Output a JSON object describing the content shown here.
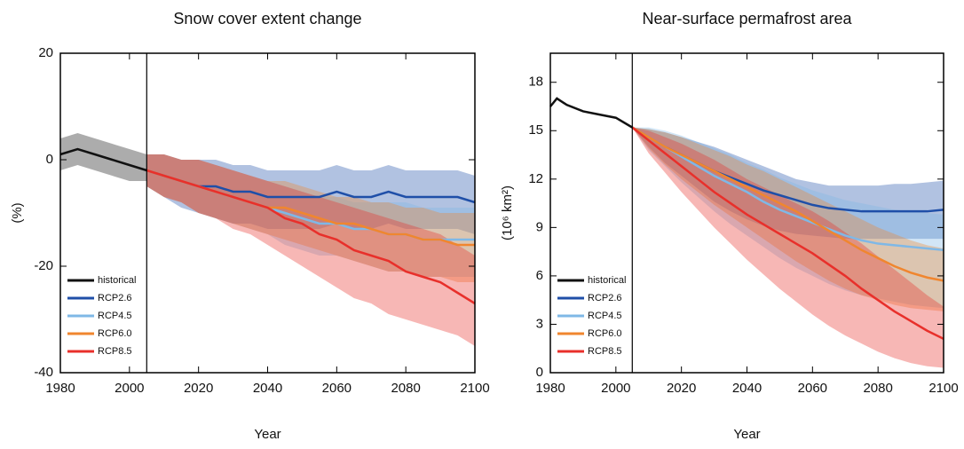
{
  "chart_data": [
    {
      "type": "line",
      "title": "Snow cover extent change",
      "xlabel": "Year",
      "ylabel": "(%)",
      "xlim": [
        1980,
        2100
      ],
      "xticks": [
        1980,
        2000,
        2020,
        2040,
        2060,
        2080,
        2100
      ],
      "ylim": [
        -40,
        20
      ],
      "yticks": [
        -40,
        -20,
        0,
        20
      ],
      "vline": 2005,
      "legend": "lower left",
      "series": [
        {
          "name": "historical",
          "color": "#111111",
          "x": [
            1980,
            1985,
            1990,
            1995,
            2000,
            2005
          ],
          "values": [
            1,
            2,
            1,
            0,
            -1,
            -2
          ],
          "lower": [
            -2,
            -1,
            -2,
            -3,
            -4,
            -4
          ],
          "upper": [
            4,
            5,
            4,
            3,
            2,
            1
          ]
        },
        {
          "name": "RCP2.6",
          "color": "#1f4fa8",
          "x": [
            2005,
            2010,
            2015,
            2020,
            2025,
            2030,
            2035,
            2040,
            2045,
            2050,
            2055,
            2060,
            2065,
            2070,
            2075,
            2080,
            2085,
            2090,
            2095,
            2100
          ],
          "values": [
            -2,
            -3,
            -4,
            -5,
            -5,
            -6,
            -6,
            -7,
            -7,
            -7,
            -7,
            -6,
            -7,
            -7,
            -6,
            -7,
            -7,
            -7,
            -7,
            -8
          ],
          "lower": [
            -5,
            -7,
            -9,
            -10,
            -11,
            -12,
            -12,
            -13,
            -13,
            -13,
            -13,
            -12,
            -13,
            -13,
            -12,
            -13,
            -13,
            -13,
            -13,
            -14
          ],
          "upper": [
            1,
            1,
            0,
            0,
            0,
            -1,
            -1,
            -2,
            -2,
            -2,
            -2,
            -1,
            -2,
            -2,
            -1,
            -2,
            -2,
            -2,
            -2,
            -3
          ]
        },
        {
          "name": "RCP4.5",
          "color": "#7fb8e6",
          "x": [
            2005,
            2010,
            2015,
            2020,
            2025,
            2030,
            2035,
            2040,
            2045,
            2050,
            2055,
            2060,
            2065,
            2070,
            2075,
            2080,
            2085,
            2090,
            2095,
            2100
          ],
          "values": [
            -2,
            -3,
            -4,
            -5,
            -6,
            -7,
            -8,
            -9,
            -10,
            -11,
            -12,
            -12,
            -13,
            -13,
            -14,
            -14,
            -15,
            -15,
            -15,
            -15
          ],
          "lower": [
            -5,
            -7,
            -8,
            -10,
            -11,
            -12,
            -13,
            -14,
            -16,
            -17,
            -18,
            -18,
            -19,
            -20,
            -21,
            -21,
            -22,
            -22,
            -22,
            -22
          ],
          "upper": [
            1,
            1,
            0,
            0,
            -1,
            -2,
            -3,
            -4,
            -5,
            -6,
            -7,
            -7,
            -8,
            -8,
            -8,
            -8,
            -9,
            -9,
            -9,
            -9
          ]
        },
        {
          "name": "RCP6.0",
          "color": "#f0862f",
          "x": [
            2005,
            2010,
            2015,
            2020,
            2025,
            2030,
            2035,
            2040,
            2045,
            2050,
            2055,
            2060,
            2065,
            2070,
            2075,
            2080,
            2085,
            2090,
            2095,
            2100
          ],
          "values": [
            -2,
            -3,
            -4,
            -5,
            -6,
            -7,
            -8,
            -9,
            -9,
            -10,
            -11,
            -12,
            -12,
            -13,
            -14,
            -14,
            -15,
            -15,
            -16,
            -16
          ],
          "lower": [
            -5,
            -7,
            -8,
            -10,
            -11,
            -12,
            -13,
            -14,
            -15,
            -16,
            -17,
            -18,
            -19,
            -20,
            -21,
            -21,
            -22,
            -22,
            -23,
            -23
          ],
          "upper": [
            1,
            1,
            0,
            0,
            -1,
            -2,
            -3,
            -4,
            -4,
            -5,
            -6,
            -7,
            -7,
            -8,
            -8,
            -9,
            -9,
            -10,
            -10,
            -10
          ]
        },
        {
          "name": "RCP8.5",
          "color": "#e8302b",
          "x": [
            2005,
            2010,
            2015,
            2020,
            2025,
            2030,
            2035,
            2040,
            2045,
            2050,
            2055,
            2060,
            2065,
            2070,
            2075,
            2080,
            2085,
            2090,
            2095,
            2100
          ],
          "values": [
            -2,
            -3,
            -4,
            -5,
            -6,
            -7,
            -8,
            -9,
            -11,
            -12,
            -14,
            -15,
            -17,
            -18,
            -19,
            -21,
            -22,
            -23,
            -25,
            -27
          ],
          "lower": [
            -5,
            -7,
            -8,
            -10,
            -11,
            -13,
            -14,
            -16,
            -18,
            -20,
            -22,
            -24,
            -26,
            -27,
            -29,
            -30,
            -31,
            -32,
            -33,
            -35
          ],
          "upper": [
            1,
            1,
            0,
            0,
            -1,
            -2,
            -3,
            -4,
            -5,
            -6,
            -7,
            -8,
            -9,
            -10,
            -11,
            -12,
            -13,
            -14,
            -16,
            -18
          ]
        }
      ]
    },
    {
      "type": "line",
      "title": "Near-surface permafrost area",
      "xlabel": "Year",
      "ylabel": "(10⁶ km²)",
      "xlim": [
        1980,
        2100
      ],
      "xticks": [
        1980,
        2000,
        2020,
        2040,
        2060,
        2080,
        2100
      ],
      "ylim": [
        0,
        19.8
      ],
      "yticks": [
        0,
        3,
        6,
        9,
        12,
        15,
        18
      ],
      "vline": 2005,
      "legend": "lower left",
      "series": [
        {
          "name": "historical",
          "color": "#111111",
          "x": [
            1980,
            1982,
            1985,
            1990,
            1995,
            2000,
            2005
          ],
          "values": [
            16.5,
            17,
            16.6,
            16.2,
            16,
            15.8,
            15.2
          ]
        },
        {
          "name": "RCP2.6",
          "color": "#1f4fa8",
          "x": [
            2005,
            2010,
            2015,
            2020,
            2025,
            2030,
            2035,
            2040,
            2045,
            2050,
            2055,
            2060,
            2065,
            2070,
            2075,
            2080,
            2085,
            2090,
            2095,
            2100
          ],
          "values": [
            15.2,
            14.6,
            14,
            13.5,
            13,
            12.5,
            12.1,
            11.7,
            11.3,
            11,
            10.7,
            10.4,
            10.2,
            10.1,
            10,
            10,
            10,
            10,
            10,
            10.1
          ],
          "lower": [
            15.2,
            14,
            13,
            12.2,
            11.4,
            10.6,
            10,
            9.5,
            9.1,
            8.8,
            8.6,
            8.5,
            8.4,
            8.3,
            8.3,
            8.3,
            8.3,
            8.3,
            8.3,
            8.3
          ],
          "upper": [
            15.2,
            15.1,
            14.9,
            14.6,
            14.3,
            14,
            13.6,
            13.2,
            12.8,
            12.4,
            12,
            11.8,
            11.6,
            11.6,
            11.6,
            11.6,
            11.7,
            11.7,
            11.8,
            11.9
          ]
        },
        {
          "name": "RCP4.5",
          "color": "#7fb8e6",
          "x": [
            2005,
            2010,
            2015,
            2020,
            2025,
            2030,
            2035,
            2040,
            2045,
            2050,
            2055,
            2060,
            2065,
            2070,
            2075,
            2080,
            2085,
            2090,
            2095,
            2100
          ],
          "values": [
            15.2,
            14.6,
            14,
            13.4,
            12.8,
            12.2,
            11.7,
            11.2,
            10.6,
            10.1,
            9.7,
            9.3,
            8.9,
            8.5,
            8.2,
            8,
            7.9,
            7.8,
            7.7,
            7.6
          ],
          "lower": [
            15.2,
            13.8,
            12.8,
            11.8,
            10.9,
            10,
            9.2,
            8.5,
            7.8,
            7.1,
            6.5,
            6,
            5.5,
            5.1,
            4.8,
            4.6,
            4.4,
            4.2,
            4.1,
            4
          ],
          "upper": [
            15.2,
            15.2,
            15,
            14.7,
            14.3,
            13.9,
            13.5,
            13,
            12.6,
            12.1,
            11.7,
            11.3,
            11,
            10.7,
            10.5,
            10.3,
            10.1,
            10,
            9.9,
            9.8
          ]
        },
        {
          "name": "RCP6.0",
          "color": "#f0862f",
          "x": [
            2005,
            2010,
            2015,
            2020,
            2025,
            2030,
            2035,
            2040,
            2045,
            2050,
            2055,
            2060,
            2065,
            2070,
            2075,
            2080,
            2085,
            2090,
            2095,
            2100
          ],
          "values": [
            15.2,
            14.6,
            14,
            13.5,
            13,
            12.5,
            12,
            11.5,
            11,
            10.5,
            10,
            9.4,
            8.8,
            8.2,
            7.6,
            7.1,
            6.6,
            6.2,
            5.9,
            5.7
          ],
          "lower": [
            15.2,
            13.9,
            12.9,
            12,
            11.2,
            10.4,
            9.7,
            9,
            8.3,
            7.6,
            6.9,
            6.3,
            5.7,
            5.2,
            4.8,
            4.5,
            4.2,
            4,
            3.9,
            3.8
          ],
          "upper": [
            15.2,
            15.1,
            14.9,
            14.6,
            14.2,
            13.8,
            13.4,
            12.9,
            12.5,
            12,
            11.5,
            11,
            10.5,
            10,
            9.5,
            9,
            8.6,
            8.2,
            7.9,
            7.7
          ]
        },
        {
          "name": "RCP8.5",
          "color": "#e8302b",
          "x": [
            2005,
            2010,
            2015,
            2020,
            2025,
            2030,
            2035,
            2040,
            2045,
            2050,
            2055,
            2060,
            2065,
            2070,
            2075,
            2080,
            2085,
            2090,
            2095,
            2100
          ],
          "values": [
            15.2,
            14.4,
            13.6,
            12.8,
            12,
            11.2,
            10.5,
            9.8,
            9.2,
            8.6,
            8,
            7.4,
            6.7,
            6,
            5.2,
            4.5,
            3.8,
            3.2,
            2.6,
            2.1
          ],
          "lower": [
            15.2,
            13.6,
            12.4,
            11.2,
            10.1,
            9,
            8,
            7,
            6.1,
            5.2,
            4.4,
            3.6,
            2.9,
            2.3,
            1.8,
            1.3,
            0.9,
            0.6,
            0.4,
            0.3
          ],
          "upper": [
            15.2,
            15,
            14.6,
            14.2,
            13.7,
            13.2,
            12.6,
            12,
            11.5,
            11,
            10.5,
            10,
            9.4,
            8.7,
            8,
            7.2,
            6.4,
            5.6,
            4.8,
            4.1
          ]
        }
      ]
    }
  ]
}
